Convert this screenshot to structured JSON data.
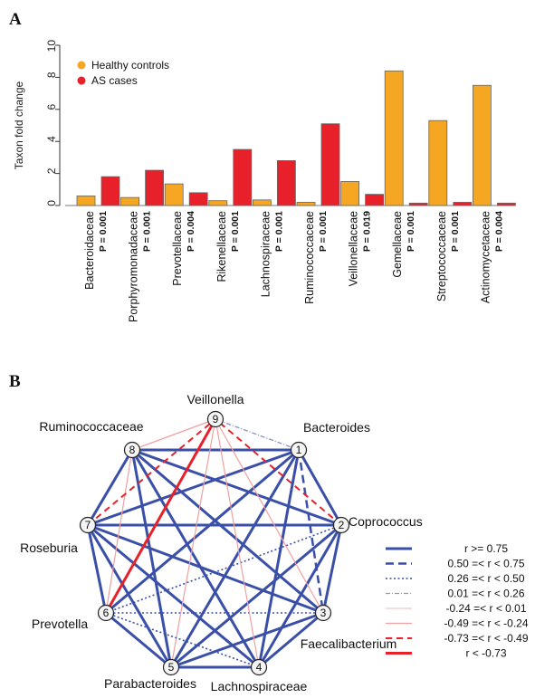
{
  "panels": [
    {
      "letter": "A"
    },
    {
      "letter": "B"
    }
  ],
  "chart_data": [
    {
      "type": "bar",
      "panel": "A",
      "ylabel": "Taxon fold change",
      "ylim": [
        0,
        10
      ],
      "yticks": [
        0,
        2,
        4,
        6,
        8,
        10
      ],
      "legend_position": "top-left",
      "categories": [
        "Bacteroidaceae",
        "Porphyromonadaceae",
        "Prevotellaceae",
        "Rikenellaceae",
        "Lachnospiraceae",
        "Ruminococcaceae",
        "Veillonellaceae",
        "Gemellaceae",
        "Streptococcaceae",
        "Actinomycetaceae"
      ],
      "pvalues": [
        "P = 0.001",
        "P = 0.001",
        "P = 0.004",
        "P = 0.001",
        "P = 0.001",
        "P = 0.001",
        "P = 0.019",
        "P = 0.001",
        "P = 0.001",
        "P = 0.004"
      ],
      "series": [
        {
          "name": "Healthy controls",
          "color": "#F5A623",
          "values": [
            0.6,
            0.5,
            1.35,
            0.3,
            0.35,
            0.2,
            1.5,
            8.4,
            5.3,
            7.5
          ]
        },
        {
          "name": "AS cases",
          "color": "#E8202A",
          "values": [
            1.8,
            2.2,
            0.8,
            3.5,
            2.8,
            5.1,
            0.7,
            0.15,
            0.2,
            0.15
          ]
        }
      ]
    },
    {
      "type": "network",
      "panel": "B",
      "nodes": [
        {
          "id": 1,
          "label": "Bacteroides"
        },
        {
          "id": 2,
          "label": "Coprococcus"
        },
        {
          "id": 3,
          "label": "Faecalibacterium"
        },
        {
          "id": 4,
          "label": "Lachnospiraceae"
        },
        {
          "id": 5,
          "label": "Parabacteroides"
        },
        {
          "id": 6,
          "label": "Prevotella"
        },
        {
          "id": 7,
          "label": "Roseburia"
        },
        {
          "id": 8,
          "label": "Ruminococcaceae"
        },
        {
          "id": 9,
          "label": "Veillonella"
        }
      ],
      "correlation_classes": [
        {
          "key": "c1",
          "label": "r >= 0.75",
          "color": "#3A4FA8",
          "style": "solid-thick"
        },
        {
          "key": "c2",
          "label": "0.50 =< r < 0.75",
          "color": "#3A4FA8",
          "style": "dashed-thick"
        },
        {
          "key": "c3",
          "label": "0.26 =< r < 0.50",
          "color": "#3A4FA8",
          "style": "dotted"
        },
        {
          "key": "c4",
          "label": "0.01 =< r < 0.26",
          "color": "#8C96C8",
          "style": "dashdot-thin"
        },
        {
          "key": "c5",
          "label": "-0.24 =< r < 0.01",
          "color": "#F2C8C8",
          "style": "solid-thin"
        },
        {
          "key": "c6",
          "label": "-0.49 =< r < -0.24",
          "color": "#F0A0A0",
          "style": "solid-thin"
        },
        {
          "key": "c7",
          "label": "-0.73 =< r < -0.49",
          "color": "#E8202A",
          "style": "dashed"
        },
        {
          "key": "c8",
          "label": "r < -0.73",
          "color": "#E8202A",
          "style": "solid-thick"
        }
      ],
      "edges": [
        [
          1,
          2,
          "c1"
        ],
        [
          1,
          3,
          "c2"
        ],
        [
          1,
          4,
          "c1"
        ],
        [
          1,
          5,
          "c1"
        ],
        [
          1,
          6,
          "c1"
        ],
        [
          1,
          7,
          "c1"
        ],
        [
          1,
          8,
          "c1"
        ],
        [
          1,
          9,
          "c4"
        ],
        [
          2,
          3,
          "c1"
        ],
        [
          2,
          4,
          "c1"
        ],
        [
          2,
          5,
          "c1"
        ],
        [
          2,
          6,
          "c3"
        ],
        [
          2,
          7,
          "c1"
        ],
        [
          2,
          8,
          "c1"
        ],
        [
          2,
          9,
          "c7"
        ],
        [
          3,
          4,
          "c1"
        ],
        [
          3,
          5,
          "c1"
        ],
        [
          3,
          6,
          "c3"
        ],
        [
          3,
          7,
          "c1"
        ],
        [
          3,
          8,
          "c1"
        ],
        [
          3,
          9,
          "c6"
        ],
        [
          4,
          5,
          "c1"
        ],
        [
          4,
          7,
          "c1"
        ],
        [
          4,
          8,
          "c1"
        ],
        [
          4,
          9,
          "c6"
        ],
        [
          5,
          6,
          "c1"
        ],
        [
          5,
          7,
          "c1"
        ],
        [
          5,
          8,
          "c1"
        ],
        [
          5,
          9,
          "c6"
        ],
        [
          6,
          7,
          "c1"
        ],
        [
          6,
          8,
          "c6"
        ],
        [
          6,
          9,
          "c8"
        ],
        [
          7,
          8,
          "c1"
        ],
        [
          7,
          9,
          "c7"
        ],
        [
          8,
          9,
          "c6"
        ],
        [
          1,
          9,
          "c4"
        ],
        [
          6,
          4,
          "c3"
        ]
      ]
    }
  ]
}
